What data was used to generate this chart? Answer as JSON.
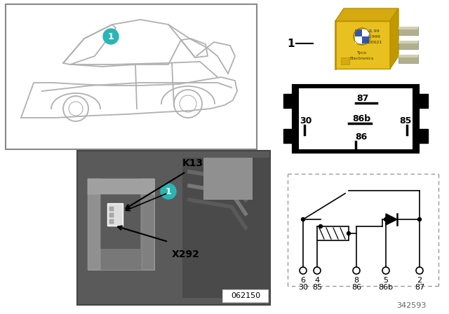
{
  "bg_color": "#ffffff",
  "car_outline_color": "#b0b0b0",
  "teal_circle_color": "#2ab0b0",
  "relay_yellow_face": "#e8c020",
  "relay_yellow_top": "#d4aa10",
  "relay_yellow_right": "#c09000",
  "relay_pin_color": "#909080",
  "pin_box_black": "#111111",
  "circuit_dashed_color": "#888888",
  "photo_bg": "#707070",
  "label_k13": "K13",
  "label_x292": "X292",
  "label_code": "062150",
  "label_partnumber": "342593",
  "pin_labels_top": [
    "87"
  ],
  "pin_labels_mid": [
    "30",
    "86b",
    "85"
  ],
  "pin_labels_bot": [
    "86"
  ],
  "circ_term_top": [
    "6",
    "4",
    "8",
    "5",
    "2"
  ],
  "circ_term_bot": [
    "30",
    "85",
    "86",
    "86b",
    "87"
  ]
}
